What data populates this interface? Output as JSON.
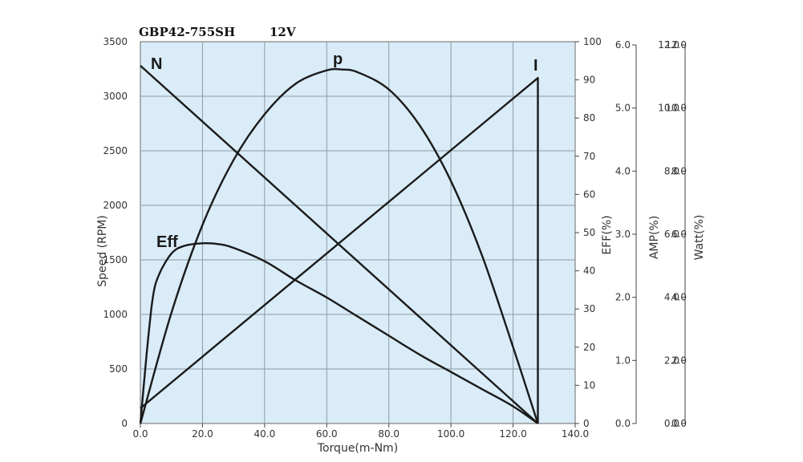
{
  "chart_data": {
    "type": "line",
    "title": "GBP42-755SH",
    "subtitle": "12V",
    "xlabel": "Torque(m-Nm)",
    "xlim": [
      0,
      140
    ],
    "xticks": [
      "0.0",
      "20.0",
      "40.0",
      "60.0",
      "80.0",
      "100.0",
      "120.0",
      "140.0"
    ],
    "grid": true,
    "background": "#d9ecf8",
    "y_axes": [
      {
        "label": "Speed (RPM)",
        "lim": [
          0,
          3500
        ],
        "ticks": [
          "0",
          "500",
          "1000",
          "1500",
          "2000",
          "2500",
          "3000",
          "3500"
        ]
      },
      {
        "label": "",
        "lim": [
          0,
          100
        ],
        "ticks": [
          "0",
          "10",
          "20",
          "30",
          "40",
          "50",
          "60",
          "70",
          "80",
          "90",
          "100"
        ]
      },
      {
        "label": "EFF(%)",
        "lim": [
          0,
          6
        ],
        "ticks": [
          "0.0",
          "1.0",
          "2.0",
          "3.0",
          "4.0",
          "5.0",
          "6.0"
        ]
      },
      {
        "label": "AMP(%)",
        "lim": [
          0,
          12
        ],
        "ticks": [
          "0.0",
          "2.0",
          "4.0",
          "6.0",
          "8.0",
          "10.0",
          "12.0"
        ]
      },
      {
        "label": "Watt(%)",
        "lim": [
          0,
          12
        ],
        "ticks": [
          "0.0",
          "2.0",
          "4.0",
          "6.0",
          "8.0",
          "10.0",
          "12.0"
        ]
      }
    ],
    "series": [
      {
        "name": "N",
        "axis": 0,
        "x": [
          0,
          128
        ],
        "y": [
          3280,
          0
        ]
      },
      {
        "name": "I",
        "axis": 1,
        "x": [
          0,
          128,
          128
        ],
        "y": [
          4,
          90.5,
          0
        ]
      },
      {
        "name": "p",
        "axis": 1,
        "x": [
          0,
          10,
          20,
          30,
          40,
          50,
          60,
          65,
          70,
          80,
          90,
          100,
          110,
          120,
          128
        ],
        "y": [
          0,
          29,
          52,
          69,
          81,
          89,
          92.5,
          92.7,
          92,
          87.5,
          78,
          63.5,
          44,
          20,
          0
        ]
      },
      {
        "name": "Eff",
        "axis": 1,
        "x": [
          0,
          2,
          4,
          6,
          10,
          14,
          20,
          25,
          30,
          40,
          50,
          60,
          70,
          80,
          90,
          100,
          110,
          120,
          128
        ],
        "y": [
          0,
          18,
          33,
          39,
          44.5,
          46.5,
          47.2,
          47,
          46,
          42.5,
          37.5,
          33,
          28,
          23,
          18,
          13.5,
          9,
          4.5,
          0
        ]
      }
    ]
  }
}
